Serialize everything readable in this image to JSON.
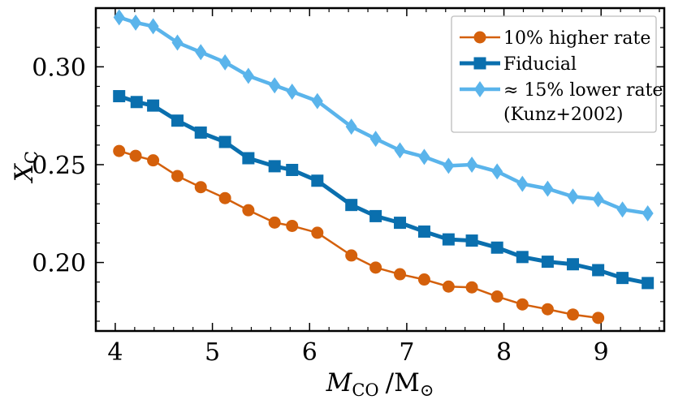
{
  "chart_data": {
    "type": "line",
    "xlabel": {
      "main": "M",
      "sub": "CO",
      "unit_main": "/M",
      "unit_sub": "⊙"
    },
    "ylabel": {
      "main": "X",
      "sub": "C"
    },
    "xlim": [
      3.8,
      9.65
    ],
    "ylim": [
      0.165,
      0.33
    ],
    "xticks": [
      4,
      5,
      6,
      7,
      8,
      9
    ],
    "xtick_labels": [
      "4",
      "5",
      "6",
      "7",
      "8",
      "9"
    ],
    "yticks": [
      0.2,
      0.25,
      0.3
    ],
    "ytick_labels": [
      "0.20",
      "0.25",
      "0.30"
    ],
    "grid": false,
    "legend_position": "top-right",
    "series": [
      {
        "name": "10% higher rate",
        "color": "#d4600b",
        "marker": "circle",
        "x": [
          4.04,
          4.21,
          4.39,
          4.64,
          4.88,
          5.13,
          5.37,
          5.64,
          5.82,
          6.08,
          6.43,
          6.68,
          6.93,
          7.18,
          7.43,
          7.67,
          7.93,
          8.19,
          8.45,
          8.71,
          8.97
        ],
        "y": [
          0.257,
          0.2545,
          0.2522,
          0.2442,
          0.2385,
          0.2329,
          0.2267,
          0.2204,
          0.2187,
          0.2152,
          0.2036,
          0.1974,
          0.194,
          0.1913,
          0.1877,
          0.1873,
          0.1826,
          0.1786,
          0.1761,
          0.1734,
          0.1717
        ]
      },
      {
        "name": "Fiducial",
        "color": "#0a6fae",
        "marker": "square",
        "x": [
          4.04,
          4.22,
          4.39,
          4.64,
          4.88,
          5.13,
          5.37,
          5.64,
          5.82,
          6.08,
          6.43,
          6.68,
          6.93,
          7.18,
          7.43,
          7.67,
          7.93,
          8.19,
          8.45,
          8.71,
          8.97,
          9.22,
          9.48
        ],
        "y": [
          0.285,
          0.282,
          0.2802,
          0.2725,
          0.2664,
          0.2616,
          0.2533,
          0.2492,
          0.2473,
          0.2418,
          0.2294,
          0.2237,
          0.2203,
          0.2158,
          0.2118,
          0.2112,
          0.2076,
          0.2028,
          0.2004,
          0.1991,
          0.1961,
          0.1921,
          0.1895
        ]
      },
      {
        "name": "≈ 15% lower rate (Kunz+2002)",
        "name_lines": [
          "≈ 15% lower rate",
          "(Kunz+2002)"
        ],
        "color": "#5ab4eb",
        "marker": "diamond",
        "x": [
          4.04,
          4.21,
          4.39,
          4.64,
          4.88,
          5.13,
          5.37,
          5.64,
          5.82,
          6.08,
          6.43,
          6.68,
          6.93,
          7.18,
          7.43,
          7.67,
          7.93,
          8.19,
          8.45,
          8.71,
          8.97,
          9.22,
          9.48
        ],
        "y": [
          0.3253,
          0.3226,
          0.3207,
          0.3124,
          0.3075,
          0.3023,
          0.2954,
          0.2905,
          0.2873,
          0.2825,
          0.2694,
          0.2632,
          0.2573,
          0.254,
          0.2494,
          0.25,
          0.2465,
          0.2402,
          0.2377,
          0.2337,
          0.2323,
          0.2271,
          0.2251
        ]
      }
    ]
  }
}
